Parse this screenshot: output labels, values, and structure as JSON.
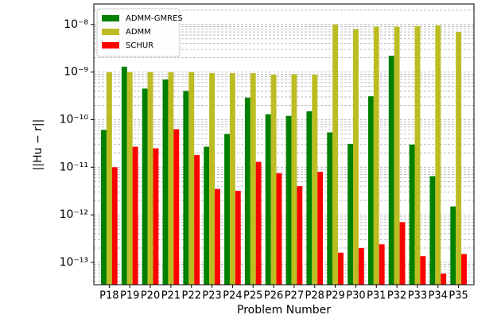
{
  "chart_data": {
    "type": "bar",
    "log_y": true,
    "grid": true,
    "minor_grid": true,
    "legend": "upper-left",
    "ylabel": "||Hu − r||",
    "xlabel": "Problem Number",
    "categories": [
      "P18",
      "P19",
      "P20",
      "P21",
      "P22",
      "P23",
      "P24",
      "P25",
      "P26",
      "P27",
      "P28",
      "P29",
      "P30",
      "P31",
      "P32",
      "P33",
      "P34",
      "P35"
    ],
    "ylim": [
      3.4e-14,
      2.7e-08
    ],
    "yticks": [
      {
        "value": 1e-13,
        "label": "10⁻¹³"
      },
      {
        "value": 1e-12,
        "label": "10⁻¹²"
      },
      {
        "value": 1e-11,
        "label": "10⁻¹¹"
      },
      {
        "value": 1e-10,
        "label": "10⁻¹⁰"
      },
      {
        "value": 1e-09,
        "label": "10⁻⁹"
      },
      {
        "value": 1e-08,
        "label": "10⁻⁸"
      }
    ],
    "series": [
      {
        "name": "ADMM-GMRES",
        "color": "#008000",
        "values": [
          6.1e-11,
          1.3e-09,
          4.5e-10,
          7e-10,
          4e-10,
          2.7e-11,
          5e-11,
          2.9e-10,
          1.3e-10,
          1.2e-10,
          1.5e-10,
          5.4e-11,
          3.1e-11,
          3.1e-10,
          2.2e-09,
          3e-11,
          6.5e-12,
          1.5e-12
        ]
      },
      {
        "name": "ADMM",
        "color": "#bcbd22",
        "values": [
          1e-09,
          1e-09,
          1e-09,
          1e-09,
          1e-09,
          9.5e-10,
          9.5e-10,
          9.5e-10,
          8.8e-10,
          9e-10,
          8.8e-10,
          1e-08,
          8e-09,
          9e-09,
          9e-09,
          9.3e-09,
          9.6e-09,
          7e-09
        ]
      },
      {
        "name": "SCHUR",
        "color": "#ff0000",
        "values": [
          1e-11,
          2.7e-11,
          2.5e-11,
          6.3e-11,
          1.8e-11,
          3.5e-12,
          3.2e-12,
          1.3e-11,
          7.5e-12,
          4e-12,
          8e-12,
          1.6e-13,
          2e-13,
          2.4e-13,
          7e-13,
          1.35e-13,
          5.8e-14,
          1.5e-13
        ]
      }
    ]
  }
}
